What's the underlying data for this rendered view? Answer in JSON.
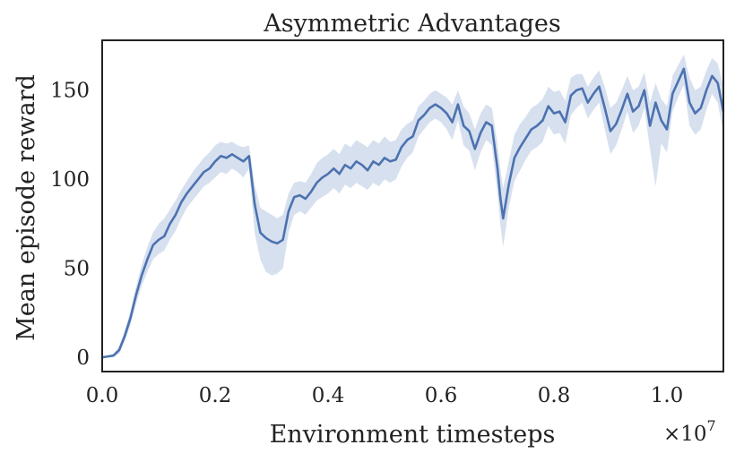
{
  "chart_data": {
    "type": "line",
    "title": "Asymmetric Advantages",
    "xlabel": "Environment timesteps",
    "ylabel": "Mean episode reward",
    "x_multiplier_base": "×10",
    "x_multiplier_exponent": "7",
    "xlim": [
      0.0,
      1.1
    ],
    "ylim": [
      -8,
      178
    ],
    "x_ticks": [
      0.0,
      0.2,
      0.4,
      0.6,
      0.8,
      1.0
    ],
    "x_tick_labels": [
      "0.0",
      "0.2",
      "0.4",
      "0.6",
      "0.8",
      "1.0"
    ],
    "y_ticks": [
      0,
      50,
      100,
      150
    ],
    "y_tick_labels": [
      "0",
      "50",
      "100",
      "150"
    ],
    "grid": false,
    "legend": "none",
    "colors": {
      "line": "#4c72b0",
      "band": "#c9d6ea",
      "axis": "#222222"
    },
    "series": [
      {
        "x": [
          0.0,
          0.02,
          0.03,
          0.04,
          0.05,
          0.06,
          0.07,
          0.08,
          0.09,
          0.1,
          0.11,
          0.12,
          0.13,
          0.14,
          0.15,
          0.16,
          0.17,
          0.18,
          0.19,
          0.2,
          0.21,
          0.22,
          0.23,
          0.24,
          0.25,
          0.26,
          0.27,
          0.28,
          0.29,
          0.3,
          0.31,
          0.32,
          0.33,
          0.34,
          0.35,
          0.36,
          0.37,
          0.38,
          0.39,
          0.4,
          0.41,
          0.42,
          0.43,
          0.44,
          0.45,
          0.46,
          0.47,
          0.48,
          0.49,
          0.5,
          0.51,
          0.52,
          0.53,
          0.54,
          0.55,
          0.56,
          0.57,
          0.58,
          0.59,
          0.6,
          0.61,
          0.62,
          0.63,
          0.64,
          0.65,
          0.66,
          0.67,
          0.68,
          0.69,
          0.7,
          0.705,
          0.71,
          0.72,
          0.73,
          0.74,
          0.75,
          0.76,
          0.77,
          0.78,
          0.79,
          0.8,
          0.81,
          0.82,
          0.83,
          0.84,
          0.85,
          0.86,
          0.87,
          0.88,
          0.89,
          0.9,
          0.91,
          0.92,
          0.93,
          0.94,
          0.95,
          0.96,
          0.97,
          0.98,
          0.99,
          1.0,
          1.01,
          1.02,
          1.03,
          1.04,
          1.05,
          1.06,
          1.07,
          1.08,
          1.09,
          1.1
        ],
        "values": [
          0,
          1,
          4,
          12,
          22,
          35,
          46,
          55,
          63,
          66,
          68,
          75,
          80,
          87,
          92,
          96,
          100,
          104,
          106,
          110,
          113,
          112,
          114,
          112,
          110,
          113,
          86,
          70,
          67,
          65,
          64,
          66,
          82,
          90,
          91,
          89,
          93,
          98,
          101,
          103,
          106,
          103,
          108,
          106,
          110,
          108,
          105,
          110,
          108,
          112,
          110,
          111,
          118,
          122,
          124,
          133,
          136,
          140,
          142,
          140,
          137,
          132,
          142,
          130,
          127,
          117,
          126,
          132,
          130,
          106,
          90,
          78,
          97,
          112,
          118,
          123,
          128,
          130,
          133,
          141,
          137,
          138,
          132,
          147,
          150,
          151,
          143,
          148,
          152,
          140,
          127,
          131,
          139,
          148,
          138,
          141,
          150,
          130,
          143,
          133,
          128,
          148,
          155,
          162,
          143,
          137,
          140,
          150,
          158,
          154,
          138
        ],
        "upper": [
          0,
          2,
          6,
          15,
          26,
          40,
          52,
          62,
          70,
          75,
          78,
          83,
          88,
          94,
          99,
          104,
          108,
          112,
          115,
          119,
          121,
          120,
          121,
          119,
          118,
          119,
          97,
          84,
          82,
          80,
          78,
          80,
          92,
          98,
          99,
          98,
          103,
          109,
          112,
          114,
          117,
          114,
          120,
          118,
          122,
          120,
          118,
          122,
          120,
          124,
          121,
          122,
          128,
          131,
          133,
          141,
          144,
          148,
          150,
          148,
          146,
          142,
          150,
          141,
          137,
          128,
          137,
          142,
          140,
          120,
          106,
          95,
          110,
          125,
          131,
          135,
          140,
          142,
          145,
          152,
          149,
          150,
          144,
          157,
          159,
          159,
          152,
          157,
          161,
          152,
          140,
          143,
          150,
          158,
          150,
          152,
          160,
          143,
          154,
          145,
          141,
          158,
          164,
          170,
          157,
          150,
          152,
          161,
          168,
          165,
          152
        ],
        "lower": [
          0,
          0,
          2,
          9,
          18,
          30,
          40,
          48,
          55,
          58,
          60,
          66,
          71,
          78,
          84,
          88,
          92,
          96,
          98,
          101,
          104,
          103,
          106,
          104,
          101,
          106,
          70,
          55,
          48,
          46,
          47,
          50,
          70,
          80,
          82,
          80,
          84,
          88,
          90,
          92,
          95,
          92,
          97,
          95,
          98,
          96,
          94,
          98,
          96,
          100,
          98,
          100,
          107,
          112,
          115,
          124,
          128,
          132,
          134,
          132,
          128,
          122,
          133,
          119,
          116,
          105,
          115,
          122,
          119,
          92,
          75,
          62,
          84,
          99,
          105,
          111,
          116,
          118,
          121,
          130,
          125,
          126,
          120,
          136,
          140,
          143,
          134,
          139,
          143,
          128,
          114,
          119,
          128,
          138,
          126,
          130,
          140,
          117,
          96,
          120,
          115,
          138,
          146,
          153,
          130,
          125,
          128,
          139,
          148,
          143,
          126
        ]
      }
    ]
  }
}
